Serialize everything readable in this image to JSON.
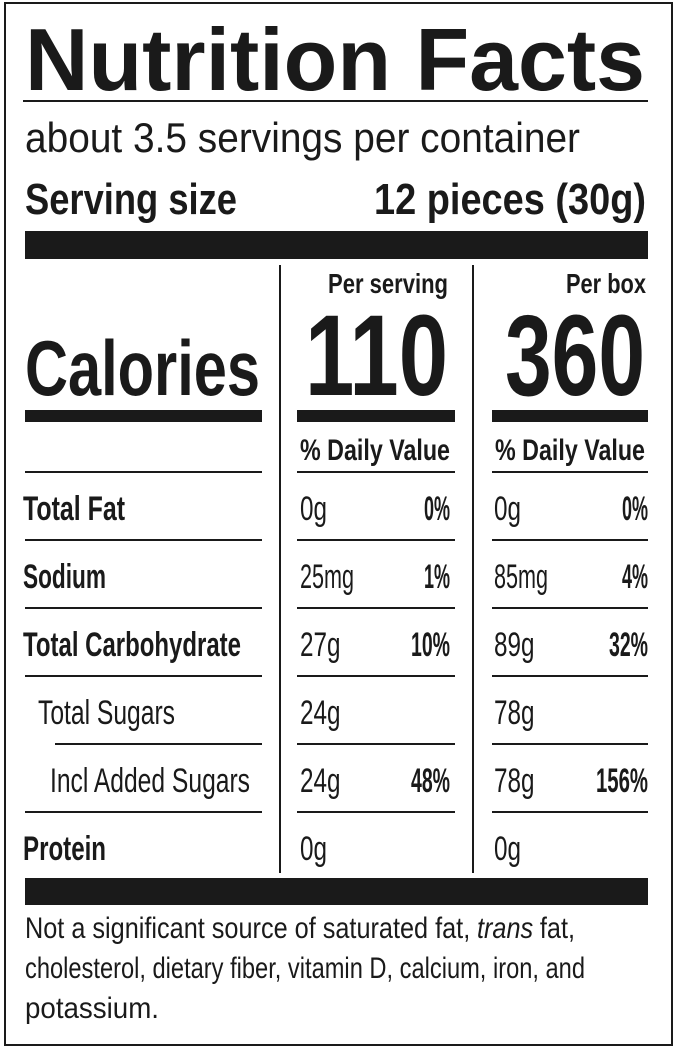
{
  "title": "Nutrition Facts",
  "servings": "about 3.5 servings per container",
  "serving_size": {
    "label": "Serving size",
    "value": "12 pieces (30g)"
  },
  "calories": {
    "label": "Calories",
    "columns": [
      {
        "heading": "Per serving",
        "value": "110",
        "daily_value": "% Daily Value"
      },
      {
        "heading": "Per box",
        "value": "360",
        "daily_value": "% Daily Value"
      }
    ]
  },
  "nutrients": [
    {
      "name": "Total Fat",
      "per_serving": {
        "amount": "0g",
        "dv": "0%"
      },
      "per_box": {
        "amount": "0g",
        "dv": "0%"
      }
    },
    {
      "name": "Sodium",
      "per_serving": {
        "amount": "25mg",
        "dv": "1%"
      },
      "per_box": {
        "amount": "85mg",
        "dv": "4%"
      }
    },
    {
      "name": "Total Carbohydrate",
      "per_serving": {
        "amount": "27g",
        "dv": "10%"
      },
      "per_box": {
        "amount": "89g",
        "dv": "32%"
      }
    },
    {
      "name": "Total Sugars",
      "per_serving": {
        "amount": "24g"
      },
      "per_box": {
        "amount": "78g"
      }
    },
    {
      "name": "Incl Added Sugars",
      "per_serving": {
        "amount": "24g",
        "dv": "48%"
      },
      "per_box": {
        "amount": "78g",
        "dv": "156%"
      }
    },
    {
      "name": "Protein",
      "per_serving": {
        "amount": "0g"
      },
      "per_box": {
        "amount": "0g"
      }
    }
  ],
  "footnote": [
    "Not a significant source of saturated fat,",
    "trans",
    "fat,",
    "cholesterol, dietary fiber, vitamin D, calcium, iron, and",
    "potassium."
  ]
}
